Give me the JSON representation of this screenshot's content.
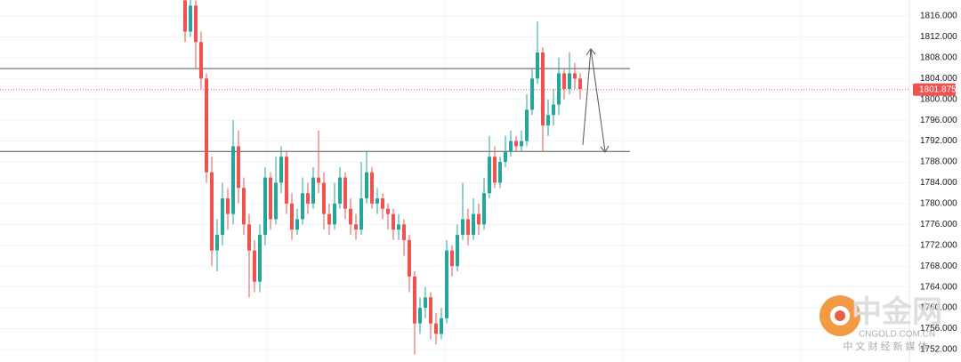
{
  "chart_data": {
    "type": "candlestick",
    "open": [
      1819,
      1813,
      1818,
      1811,
      1804,
      1786,
      1771,
      1774,
      1781,
      1778,
      1791,
      1783,
      1776,
      1771,
      1765,
      1774,
      1785,
      1777,
      1784,
      1789,
      1780,
      1775,
      1777,
      1782,
      1780,
      1785,
      1784,
      1778,
      1776,
      1780,
      1785,
      1779,
      1776,
      1775,
      1781,
      1786,
      1780,
      1781,
      1779,
      1778,
      1775,
      1776,
      1773,
      1766,
      1757,
      1760,
      1762,
      1757,
      1755,
      1758,
      1771,
      1768,
      1774,
      1777,
      1774,
      1778,
      1776,
      1782,
      1789,
      1784,
      1788,
      1790,
      1792,
      1791,
      1792,
      1798,
      1804,
      1809,
      1795,
      1797,
      1799,
      1805,
      1802,
      1805,
      1804
    ],
    "high": [
      1821,
      1820,
      1819,
      1813,
      1805,
      1789,
      1777,
      1784,
      1783,
      1796,
      1794,
      1785,
      1778,
      1773,
      1776,
      1787,
      1786,
      1789,
      1791,
      1790,
      1782,
      1779,
      1785,
      1784,
      1787,
      1794,
      1786,
      1780,
      1784,
      1787,
      1786,
      1781,
      1778,
      1788,
      1790,
      1787,
      1783,
      1782,
      1780,
      1779,
      1778,
      1777,
      1774,
      1767,
      1762,
      1764,
      1763,
      1759,
      1760,
      1773,
      1772,
      1776,
      1784,
      1779,
      1781,
      1780,
      1785,
      1793,
      1791,
      1789,
      1793,
      1794,
      1793,
      1794,
      1801,
      1806,
      1815,
      1810,
      1800,
      1802,
      1808,
      1806,
      1809,
      1807,
      1805
    ],
    "low": [
      1811,
      1812,
      1806,
      1802,
      1784,
      1768,
      1767,
      1772,
      1775,
      1776,
      1780,
      1774,
      1762,
      1763,
      1763,
      1772,
      1775,
      1776,
      1782,
      1778,
      1773,
      1774,
      1776,
      1778,
      1779,
      1782,
      1775,
      1774,
      1775,
      1779,
      1777,
      1774,
      1773,
      1774,
      1780,
      1779,
      1778,
      1777,
      1775,
      1773,
      1773,
      1770,
      1763,
      1751,
      1755,
      1758,
      1754,
      1753,
      1754,
      1757,
      1766,
      1767,
      1773,
      1772,
      1773,
      1774,
      1775,
      1781,
      1783,
      1783,
      1787,
      1789,
      1790,
      1790,
      1791,
      1797,
      1803,
      1790,
      1793,
      1795,
      1797,
      1800,
      1801,
      1802,
      1800
    ],
    "close": [
      1813,
      1818,
      1811,
      1804,
      1786,
      1771,
      1774,
      1781,
      1778,
      1791,
      1783,
      1776,
      1771,
      1765,
      1774,
      1785,
      1777,
      1784,
      1789,
      1780,
      1775,
      1777,
      1782,
      1780,
      1785,
      1784,
      1778,
      1776,
      1780,
      1785,
      1779,
      1776,
      1775,
      1781,
      1786,
      1780,
      1781,
      1779,
      1778,
      1775,
      1776,
      1773,
      1766,
      1757,
      1760,
      1762,
      1757,
      1755,
      1758,
      1771,
      1768,
      1774,
      1777,
      1774,
      1778,
      1776,
      1782,
      1789,
      1784,
      1788,
      1790,
      1792,
      1791,
      1792,
      1798,
      1804,
      1809,
      1795,
      1797,
      1799,
      1805,
      1802,
      1805,
      1804,
      1802
    ],
    "up_color": "#26a69a",
    "down_color": "#ef5350",
    "ylim": [
      1749.6,
      1819.07
    ],
    "yticks": [
      {
        "value": 1752,
        "label": "1752.000"
      },
      {
        "value": 1756,
        "label": "1756.000"
      },
      {
        "value": 1760,
        "label": "1760.000"
      },
      {
        "value": 1764,
        "label": "1764.000"
      },
      {
        "value": 1768,
        "label": "1768.000"
      },
      {
        "value": 1772,
        "label": "1772.000"
      },
      {
        "value": 1776,
        "label": "1776.000"
      },
      {
        "value": 1780,
        "label": "1780.000"
      },
      {
        "value": 1784,
        "label": "1784.000"
      },
      {
        "value": 1788,
        "label": "1788.000"
      },
      {
        "value": 1792,
        "label": "1792.000"
      },
      {
        "value": 1796,
        "label": "1796.000"
      },
      {
        "value": 1800,
        "label": "1800.000"
      },
      {
        "value": 1804,
        "label": "1804.000"
      },
      {
        "value": 1808,
        "label": "1808.000"
      },
      {
        "value": 1812,
        "label": "1812.000"
      },
      {
        "value": 1816,
        "label": "1816.000"
      }
    ],
    "last_price": {
      "value": 1801.875,
      "label": "1801.875"
    },
    "levels": [
      1805.9,
      1790.0
    ],
    "grid": true
  },
  "watermark": {
    "name": "中金网",
    "domain": "CNGOLD.COM.CN",
    "slogan": "中 文 财 经 新 媒 体"
  }
}
